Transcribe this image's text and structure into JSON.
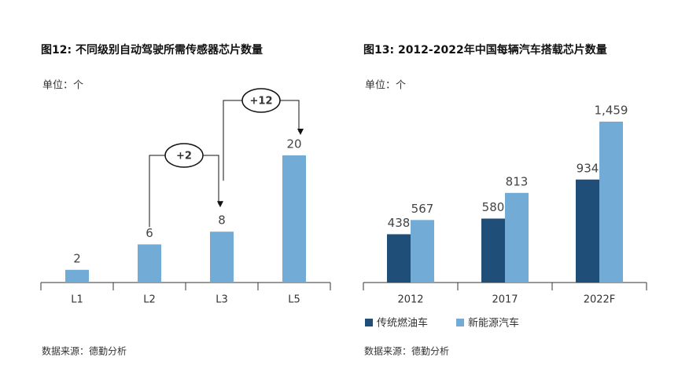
{
  "chart_data": [
    {
      "type": "bar",
      "title": "图12: 不同级别自动驾驶所需传感器芯片数量",
      "unit": "单位：个",
      "categories": [
        "L1",
        "L2",
        "L3",
        "L5"
      ],
      "values": [
        2,
        6,
        8,
        20
      ],
      "color": "#72acd6",
      "annotations": [
        "+2",
        "+12"
      ],
      "source": "数据来源：德勤分析"
    },
    {
      "type": "grouped-bar",
      "title": "图13: 2012-2022年中国每辆汽车搭载芯片数量",
      "unit": "单位：个",
      "categories": [
        "2012",
        "2017",
        "2022F"
      ],
      "series": [
        {
          "name": "传统燃油车",
          "color": "#1f4e79",
          "values": [
            438,
            580,
            934
          ]
        },
        {
          "name": "新能源汽车",
          "color": "#72acd6",
          "values": [
            567,
            813,
            1459
          ],
          "value_labels": [
            "567",
            "813",
            "1,459"
          ]
        }
      ],
      "legend": "bottom-left",
      "source": "数据来源：德勤分析"
    }
  ]
}
